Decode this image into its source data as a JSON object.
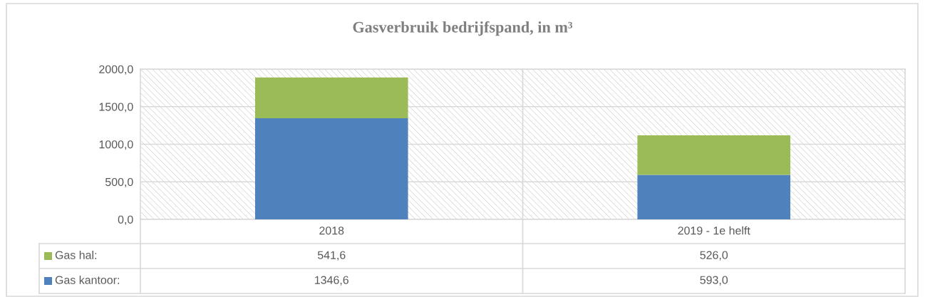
{
  "chart_data": {
    "type": "bar",
    "title": "Gasverbruik bedrijfspand, in m³",
    "categories": [
      "2018",
      "2019 - 1e helft"
    ],
    "stacked": true,
    "series": [
      {
        "name": "Gas kantoor:",
        "color": "#4f81bd",
        "values": [
          1346.6,
          593.0
        ],
        "value_labels": [
          "1346,6",
          "593,0"
        ]
      },
      {
        "name": "Gas hal:",
        "color": "#9bbb59",
        "values": [
          541.6,
          526.0
        ],
        "value_labels": [
          "541,6",
          "526,0"
        ]
      }
    ],
    "ylim": [
      0,
      2000
    ],
    "yticks": [
      {
        "value": 0,
        "label": "0,0"
      },
      {
        "value": 500,
        "label": "500,0"
      },
      {
        "value": 1000,
        "label": "1000,0"
      },
      {
        "value": 1500,
        "label": "1500,0"
      },
      {
        "value": 2000,
        "label": "2000,0"
      }
    ],
    "grid": "y",
    "legend": "bottom left"
  }
}
